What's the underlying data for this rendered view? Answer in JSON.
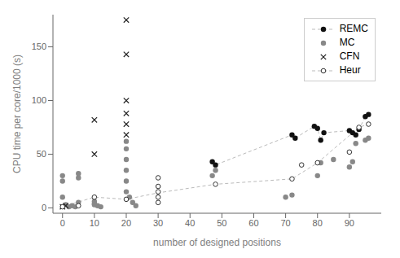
{
  "chart_data": {
    "type": "scatter",
    "xlabel": "number of designed positions",
    "ylabel": "CPU time per core/1000 (s)",
    "xlim": [
      -3,
      100
    ],
    "ylim": [
      -5,
      180
    ],
    "xticks": [
      0,
      10,
      20,
      30,
      40,
      50,
      60,
      70,
      80,
      90
    ],
    "yticks": [
      0,
      50,
      100,
      150
    ],
    "legend": "upper right",
    "grid": false,
    "series": [
      {
        "name": "REMC",
        "color": "#111111",
        "marker": "circle",
        "x": [
          47,
          48,
          72,
          73,
          79,
          80,
          81,
          82,
          90,
          91,
          92,
          93,
          95,
          96
        ],
        "values": [
          43,
          40,
          68,
          65,
          76,
          74,
          63,
          70,
          72,
          70,
          68,
          73,
          85,
          87
        ],
        "line": {
          "color": "#bbbbbb",
          "line_style": "dashed",
          "x": [
            47,
            48,
            72,
            73,
            79,
            80,
            81,
            82,
            90,
            91,
            92,
            93,
            95,
            96
          ],
          "values": [
            43,
            40,
            68,
            65,
            76,
            74,
            63,
            70,
            72,
            70,
            68,
            73,
            85,
            87
          ]
        }
      },
      {
        "name": "MC",
        "color": "#888888",
        "marker": "circle",
        "x": [
          0,
          0,
          0,
          1,
          2,
          3,
          4,
          5,
          5,
          5,
          10,
          10,
          10,
          11,
          12,
          20,
          20,
          20,
          20,
          20,
          20,
          21,
          22,
          23,
          47,
          48,
          70,
          72,
          80,
          81,
          85,
          90,
          91,
          92,
          95,
          96
        ],
        "values": [
          10,
          25,
          30,
          3,
          1,
          2,
          1,
          5,
          28,
          32,
          6,
          4,
          3,
          2,
          1,
          62,
          55,
          45,
          35,
          25,
          15,
          10,
          5,
          2,
          30,
          35,
          10,
          12,
          30,
          42,
          45,
          38,
          43,
          60,
          63,
          65
        ]
      },
      {
        "name": "CFN",
        "color": "#222222",
        "marker": "x",
        "x": [
          0,
          1,
          10,
          10,
          20,
          20,
          20,
          20,
          20,
          20
        ],
        "values": [
          1,
          2,
          82,
          50,
          175,
          143,
          100,
          88,
          78,
          68
        ]
      },
      {
        "name": "Heur",
        "color": "#333333",
        "marker": "open_circle",
        "x": [
          0,
          5,
          10,
          20,
          30,
          30,
          30,
          30,
          30,
          48,
          72,
          75,
          80,
          90,
          93,
          96
        ],
        "values": [
          1,
          2,
          10,
          8,
          5,
          10,
          15,
          20,
          28,
          22,
          27,
          40,
          42,
          52,
          75,
          78
        ],
        "line": {
          "color": "#bbbbbb",
          "line_style": "dashed",
          "x": [
            0,
            10,
            20,
            30,
            48,
            72,
            80,
            93,
            96
          ],
          "values": [
            1,
            10,
            8,
            14,
            22,
            27,
            42,
            75,
            78
          ]
        }
      }
    ]
  }
}
